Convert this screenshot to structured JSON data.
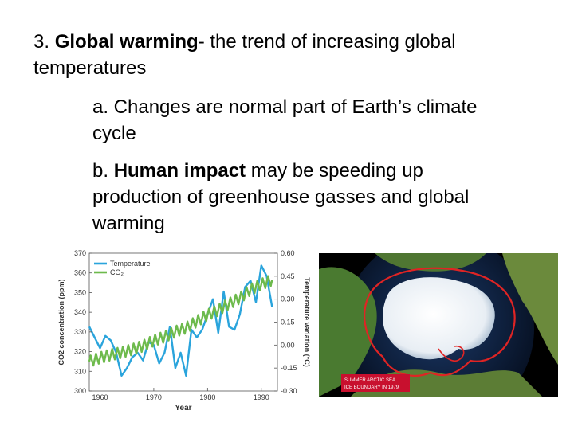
{
  "slide": {
    "point3_number": "3.",
    "point3_term": "Global warming",
    "point3_def_line1": "- the trend of increasing global",
    "point3_def_line2": "temperatures",
    "point_a_line1": "a. Changes are normal part of Earth’s climate",
    "point_a_line2": "cycle",
    "point_b_prefix": "b.",
    "point_b_term": "Human impact",
    "point_b_line1_rest": "may be speeding up",
    "point_b_line2": "production of greenhouse gasses and global",
    "point_b_line3": "warming"
  },
  "photo": {
    "caption_line1": "SUMMER ARCTIC SEA",
    "caption_line2": "ICE BOUNDARY IN 1979",
    "colors": {
      "ocean": "#0a1a3a",
      "land": "#3d6b2a",
      "ice": "#f4f6f8",
      "boundary": "#e02424",
      "caption_box": "#c8102e"
    }
  },
  "chart_data": {
    "type": "line",
    "xlabel": "Year",
    "ylabel_left": "CO2 concentration (ppm)",
    "ylabel_right": "Temperature variation (°C)",
    "x_ticks": [
      "1960",
      "1970",
      "1980",
      "1990"
    ],
    "y_left_ticks": [
      "300",
      "310",
      "320",
      "330",
      "340",
      "350",
      "360",
      "370"
    ],
    "y_right_ticks": [
      "-0.30",
      "-0.15",
      "0.00",
      "0.15",
      "0.30",
      "0.45",
      "0.60"
    ],
    "xlim": [
      1958,
      1993
    ],
    "ylim_left": [
      300,
      370
    ],
    "ylim_right": [
      -0.3,
      0.6
    ],
    "grid": false,
    "legend_position": "top-left",
    "series": [
      {
        "name": "Temperature",
        "color": "#2aa4dc",
        "axis": "right",
        "x": [
          1958,
          1959,
          1960,
          1961,
          1962,
          1963,
          1964,
          1965,
          1966,
          1967,
          1968,
          1969,
          1970,
          1971,
          1972,
          1973,
          1974,
          1975,
          1976,
          1977,
          1978,
          1979,
          1980,
          1981,
          1982,
          1983,
          1984,
          1985,
          1986,
          1987,
          1988,
          1989,
          1990,
          1991,
          1992
        ],
        "y": [
          0.12,
          0.05,
          -0.02,
          0.06,
          0.03,
          -0.05,
          -0.2,
          -0.15,
          -0.08,
          -0.05,
          -0.1,
          0.02,
          0.0,
          -0.12,
          -0.05,
          0.12,
          -0.15,
          -0.05,
          -0.2,
          0.1,
          0.05,
          0.1,
          0.2,
          0.3,
          0.08,
          0.35,
          0.12,
          0.1,
          0.2,
          0.38,
          0.42,
          0.28,
          0.52,
          0.45,
          0.25
        ]
      },
      {
        "name": "CO₂",
        "color": "#6dba4c",
        "axis": "left",
        "x": [
          1958,
          1960,
          1962,
          1964,
          1966,
          1968,
          1970,
          1972,
          1974,
          1976,
          1978,
          1980,
          1982,
          1984,
          1986,
          1988,
          1990,
          1992
        ],
        "y": [
          315,
          316.9,
          318.4,
          319.6,
          321.1,
          322.9,
          325.7,
          327.5,
          330.2,
          332.1,
          335.4,
          338.7,
          341.1,
          344.4,
          347.2,
          351.6,
          354.2,
          356.4
        ]
      }
    ]
  }
}
